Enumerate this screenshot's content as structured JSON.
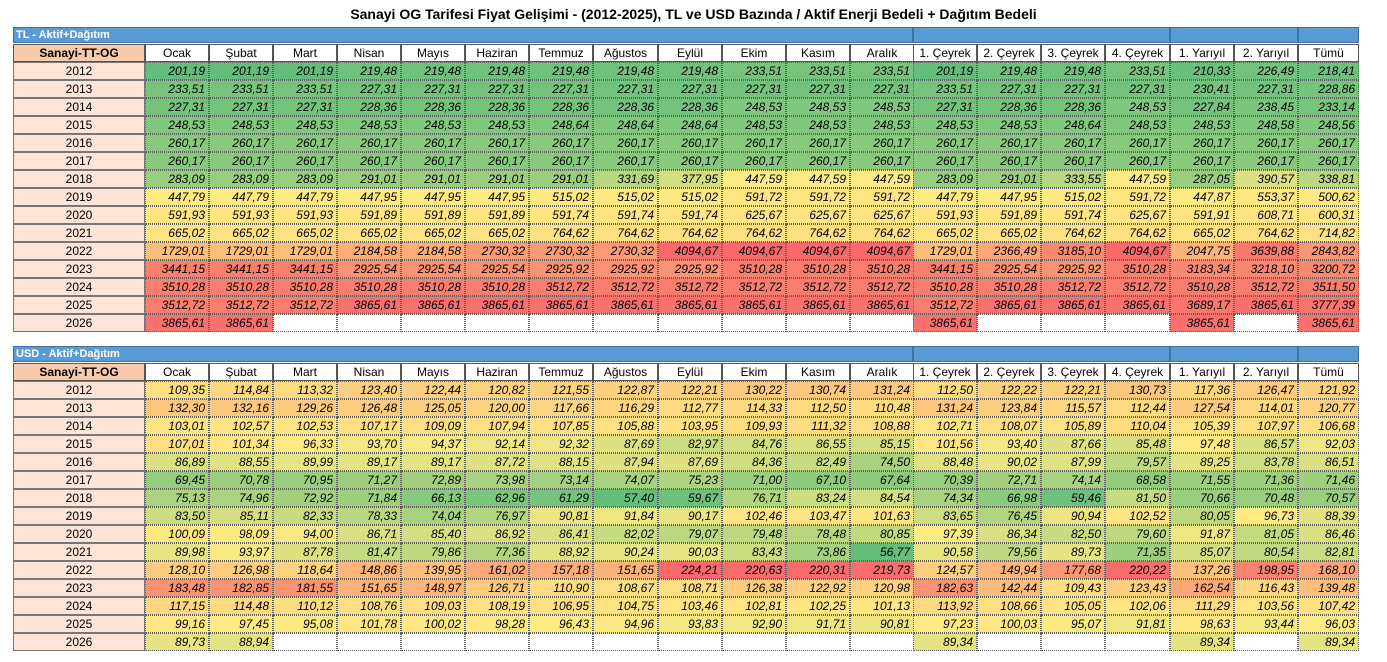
{
  "title": "Sanayi OG Tarifesi Fiyat Gelişimi - (2012-2025), TL ve USD Bazında / Aktif Enerji Bedeli + Dağıtım Bedeli",
  "columns": [
    "Sanayi-TT-OG",
    "Ocak",
    "Şubat",
    "Mart",
    "Nisan",
    "Mayıs",
    "Haziran",
    "Temmuz",
    "Ağustos",
    "Eylül",
    "Ekim",
    "Kasım",
    "Aralık",
    "1. Çeyrek",
    "2. Çeyrek",
    "3. Çeyrek",
    "4. Çeyrek",
    "1. Yarıyıl",
    "2. Yarıyıl",
    "Tümü"
  ],
  "colors": {
    "header_bar": "#5b9bd5",
    "year_cell": "#fce4d6",
    "scale_low": "#63be7b",
    "scale_mid": "#ffeb84",
    "scale_high": "#f8696b"
  },
  "sections": [
    {
      "label": "TL - Aktif+Dağıtım",
      "rows": [
        {
          "year": "2012",
          "values": [
            "201,19",
            "201,19",
            "201,19",
            "219,48",
            "219,48",
            "219,48",
            "219,48",
            "219,48",
            "219,48",
            "233,51",
            "233,51",
            "233,51",
            "201,19",
            "219,48",
            "219,48",
            "233,51",
            "210,33",
            "226,49",
            "218,41"
          ]
        },
        {
          "year": "2013",
          "values": [
            "233,51",
            "233,51",
            "233,51",
            "227,31",
            "227,31",
            "227,31",
            "227,31",
            "227,31",
            "227,31",
            "227,31",
            "227,31",
            "227,31",
            "233,51",
            "227,31",
            "227,31",
            "227,31",
            "230,41",
            "227,31",
            "228,86"
          ]
        },
        {
          "year": "2014",
          "values": [
            "227,31",
            "227,31",
            "227,31",
            "228,36",
            "228,36",
            "228,36",
            "228,36",
            "228,36",
            "228,36",
            "248,53",
            "248,53",
            "248,53",
            "227,31",
            "228,36",
            "228,36",
            "248,53",
            "227,84",
            "238,45",
            "233,14"
          ]
        },
        {
          "year": "2015",
          "values": [
            "248,53",
            "248,53",
            "248,53",
            "248,53",
            "248,53",
            "248,53",
            "248,64",
            "248,64",
            "248,64",
            "248,53",
            "248,53",
            "248,53",
            "248,53",
            "248,53",
            "248,64",
            "248,53",
            "248,53",
            "248,58",
            "248,56"
          ]
        },
        {
          "year": "2016",
          "values": [
            "260,17",
            "260,17",
            "260,17",
            "260,17",
            "260,17",
            "260,17",
            "260,17",
            "260,17",
            "260,17",
            "260,17",
            "260,17",
            "260,17",
            "260,17",
            "260,17",
            "260,17",
            "260,17",
            "260,17",
            "260,17",
            "260,17"
          ]
        },
        {
          "year": "2017",
          "values": [
            "260,17",
            "260,17",
            "260,17",
            "260,17",
            "260,17",
            "260,17",
            "260,17",
            "260,17",
            "260,17",
            "260,17",
            "260,17",
            "260,17",
            "260,17",
            "260,17",
            "260,17",
            "260,17",
            "260,17",
            "260,17",
            "260,17"
          ]
        },
        {
          "year": "2018",
          "values": [
            "283,09",
            "283,09",
            "283,09",
            "291,01",
            "291,01",
            "291,01",
            "291,01",
            "331,69",
            "377,95",
            "447,59",
            "447,59",
            "447,59",
            "283,09",
            "291,01",
            "333,55",
            "447,59",
            "287,05",
            "390,57",
            "338,81"
          ]
        },
        {
          "year": "2019",
          "values": [
            "447,79",
            "447,79",
            "447,79",
            "447,95",
            "447,95",
            "447,95",
            "515,02",
            "515,02",
            "515,02",
            "591,72",
            "591,72",
            "591,72",
            "447,79",
            "447,95",
            "515,02",
            "591,72",
            "447,87",
            "553,37",
            "500,62"
          ]
        },
        {
          "year": "2020",
          "values": [
            "591,93",
            "591,93",
            "591,93",
            "591,89",
            "591,89",
            "591,89",
            "591,74",
            "591,74",
            "591,74",
            "625,67",
            "625,67",
            "625,67",
            "591,93",
            "591,89",
            "591,74",
            "625,67",
            "591,91",
            "608,71",
            "600,31"
          ]
        },
        {
          "year": "2021",
          "values": [
            "665,02",
            "665,02",
            "665,02",
            "665,02",
            "665,02",
            "665,02",
            "764,62",
            "764,62",
            "764,62",
            "764,62",
            "764,62",
            "764,62",
            "665,02",
            "665,02",
            "764,62",
            "764,62",
            "665,02",
            "764,62",
            "714,82"
          ]
        },
        {
          "year": "2022",
          "values": [
            "1729,01",
            "1729,01",
            "1729,01",
            "2184,58",
            "2184,58",
            "2730,32",
            "2730,32",
            "2730,32",
            "4094,67",
            "4094,67",
            "4094,67",
            "4094,67",
            "1729,01",
            "2366,49",
            "3185,10",
            "4094,67",
            "2047,75",
            "3639,88",
            "2843,82"
          ]
        },
        {
          "year": "2023",
          "values": [
            "3441,15",
            "3441,15",
            "3441,15",
            "2925,54",
            "2925,54",
            "2925,54",
            "2925,92",
            "2925,92",
            "2925,92",
            "3510,28",
            "3510,28",
            "3510,28",
            "3441,15",
            "2925,54",
            "2925,92",
            "3510,28",
            "3183,34",
            "3218,10",
            "3200,72"
          ]
        },
        {
          "year": "2024",
          "values": [
            "3510,28",
            "3510,28",
            "3510,28",
            "3510,28",
            "3510,28",
            "3510,28",
            "3512,72",
            "3512,72",
            "3512,72",
            "3512,72",
            "3512,72",
            "3512,72",
            "3510,28",
            "3510,28",
            "3512,72",
            "3512,72",
            "3510,28",
            "3512,72",
            "3511,50"
          ]
        },
        {
          "year": "2025",
          "values": [
            "3512,72",
            "3512,72",
            "3512,72",
            "3865,61",
            "3865,61",
            "3865,61",
            "3865,61",
            "3865,61",
            "3865,61",
            "3865,61",
            "3865,61",
            "3865,61",
            "3512,72",
            "3865,61",
            "3865,61",
            "3865,61",
            "3689,17",
            "3865,61",
            "3777,39"
          ]
        },
        {
          "year": "2026",
          "values": [
            "3865,61",
            "3865,61",
            "",
            "",
            "",
            "",
            "",
            "",
            "",
            "",
            "",
            "",
            "3865,61",
            "",
            "",
            "",
            "3865,61",
            "",
            "3865,61"
          ]
        }
      ]
    },
    {
      "label": "USD - Aktif+Dağıtım",
      "rows": [
        {
          "year": "2012",
          "values": [
            "109,35",
            "114,84",
            "113,32",
            "123,40",
            "122,44",
            "120,82",
            "121,55",
            "122,87",
            "122,21",
            "130,22",
            "130,74",
            "131,24",
            "112,50",
            "122,22",
            "122,21",
            "130,73",
            "117,36",
            "126,47",
            "121,92"
          ]
        },
        {
          "year": "2013",
          "values": [
            "132,30",
            "132,16",
            "129,26",
            "126,48",
            "125,05",
            "120,00",
            "117,66",
            "116,29",
            "112,77",
            "114,33",
            "112,50",
            "110,48",
            "131,24",
            "123,84",
            "115,57",
            "112,44",
            "127,54",
            "114,01",
            "120,77"
          ]
        },
        {
          "year": "2014",
          "values": [
            "103,01",
            "102,57",
            "102,53",
            "107,17",
            "109,09",
            "107,94",
            "107,85",
            "105,88",
            "103,95",
            "109,93",
            "111,32",
            "108,88",
            "102,71",
            "108,07",
            "105,89",
            "110,04",
            "105,39",
            "107,97",
            "106,68"
          ]
        },
        {
          "year": "2015",
          "values": [
            "107,01",
            "101,34",
            "96,33",
            "93,70",
            "94,37",
            "92,14",
            "92,32",
            "87,69",
            "82,97",
            "84,76",
            "86,55",
            "85,15",
            "101,56",
            "93,40",
            "87,66",
            "85,48",
            "97,48",
            "86,57",
            "92,03"
          ]
        },
        {
          "year": "2016",
          "values": [
            "86,89",
            "88,55",
            "89,99",
            "89,17",
            "89,17",
            "87,72",
            "88,15",
            "87,94",
            "87,69",
            "84,36",
            "82,49",
            "74,50",
            "88,48",
            "90,02",
            "87,99",
            "79,57",
            "89,25",
            "83,78",
            "86,51"
          ]
        },
        {
          "year": "2017",
          "values": [
            "69,45",
            "70,78",
            "70,95",
            "71,27",
            "72,89",
            "73,98",
            "73,14",
            "74,07",
            "75,23",
            "71,00",
            "67,10",
            "67,64",
            "70,39",
            "72,71",
            "74,14",
            "68,58",
            "71,55",
            "71,36",
            "71,46"
          ]
        },
        {
          "year": "2018",
          "values": [
            "75,13",
            "74,96",
            "72,92",
            "71,84",
            "66,13",
            "62,96",
            "61,29",
            "57,40",
            "59,67",
            "76,71",
            "83,24",
            "84,54",
            "74,34",
            "66,98",
            "59,46",
            "81,50",
            "70,66",
            "70,48",
            "70,57"
          ]
        },
        {
          "year": "2019",
          "values": [
            "83,50",
            "85,11",
            "82,33",
            "78,33",
            "74,04",
            "76,97",
            "90,81",
            "91,84",
            "90,17",
            "102,46",
            "103,47",
            "101,63",
            "83,65",
            "76,45",
            "90,94",
            "102,52",
            "80,05",
            "96,73",
            "88,39"
          ]
        },
        {
          "year": "2020",
          "values": [
            "100,09",
            "98,09",
            "94,00",
            "86,71",
            "85,40",
            "86,92",
            "86,41",
            "82,02",
            "79,07",
            "79,48",
            "78,48",
            "80,85",
            "97,39",
            "86,34",
            "82,50",
            "79,60",
            "91,87",
            "81,05",
            "86,46"
          ]
        },
        {
          "year": "2021",
          "values": [
            "89,98",
            "93,97",
            "87,78",
            "81,47",
            "79,86",
            "77,36",
            "88,92",
            "90,24",
            "90,03",
            "83,43",
            "73,86",
            "56,77",
            "90,58",
            "79,56",
            "89,73",
            "71,35",
            "85,07",
            "80,54",
            "82,81"
          ]
        },
        {
          "year": "2022",
          "values": [
            "128,10",
            "126,98",
            "118,64",
            "148,86",
            "139,95",
            "161,02",
            "157,18",
            "151,65",
            "224,21",
            "220,63",
            "220,31",
            "219,73",
            "124,57",
            "149,94",
            "177,68",
            "220,22",
            "137,26",
            "198,95",
            "168,10"
          ]
        },
        {
          "year": "2023",
          "values": [
            "183,48",
            "182,85",
            "181,55",
            "151,65",
            "148,97",
            "126,71",
            "110,90",
            "108,67",
            "108,71",
            "126,38",
            "122,92",
            "120,98",
            "182,63",
            "142,44",
            "109,43",
            "123,43",
            "162,54",
            "116,43",
            "139,48"
          ]
        },
        {
          "year": "2024",
          "values": [
            "117,15",
            "114,48",
            "110,12",
            "108,76",
            "109,03",
            "108,19",
            "106,95",
            "104,75",
            "103,46",
            "102,81",
            "102,25",
            "101,13",
            "113,92",
            "108,66",
            "105,05",
            "102,06",
            "111,29",
            "103,56",
            "107,42"
          ]
        },
        {
          "year": "2025",
          "values": [
            "99,16",
            "97,45",
            "95,08",
            "101,78",
            "100,02",
            "98,28",
            "96,43",
            "94,96",
            "93,83",
            "92,90",
            "91,71",
            "90,81",
            "97,23",
            "100,03",
            "95,07",
            "91,81",
            "98,63",
            "93,44",
            "96,03"
          ]
        },
        {
          "year": "2026",
          "values": [
            "89,73",
            "88,94",
            "",
            "",
            "",
            "",
            "",
            "",
            "",
            "",
            "",
            "",
            "89,34",
            "",
            "",
            "",
            "89,34",
            "",
            "89,34"
          ]
        }
      ]
    }
  ]
}
